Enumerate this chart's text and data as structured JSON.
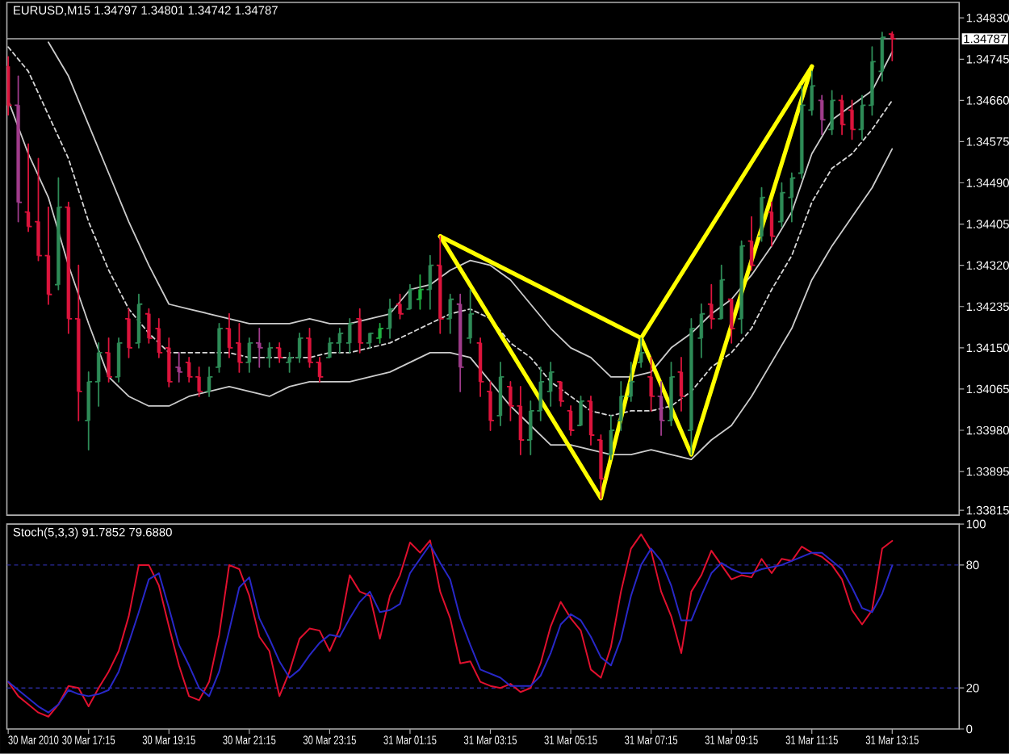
{
  "chart_data": [
    {
      "type": "candlestick",
      "title": "EURUSD,M15 1.34797 1.34801 1.34742 1.34787",
      "x": [
        "2010-03-30T15:15",
        "2010-03-30T15:30",
        "2010-03-30T15:45",
        "2010-03-30T16:00",
        "2010-03-30T16:15",
        "2010-03-30T16:30",
        "2010-03-30T16:45",
        "2010-03-30T17:00",
        "2010-03-30T17:15",
        "2010-03-30T17:30",
        "2010-03-30T17:45",
        "2010-03-30T18:00",
        "2010-03-30T18:15",
        "2010-03-30T18:30",
        "2010-03-30T18:45",
        "2010-03-30T19:00",
        "2010-03-30T19:15",
        "2010-03-30T19:30",
        "2010-03-30T19:45",
        "2010-03-30T20:00",
        "2010-03-30T20:15",
        "2010-03-30T20:30",
        "2010-03-30T20:45",
        "2010-03-30T21:00",
        "2010-03-30T21:15",
        "2010-03-30T21:30",
        "2010-03-30T21:45",
        "2010-03-30T22:00",
        "2010-03-30T22:15",
        "2010-03-30T22:30",
        "2010-03-30T22:45",
        "2010-03-30T23:00",
        "2010-03-30T23:15",
        "2010-03-30T23:30",
        "2010-03-30T23:45",
        "2010-03-31T00:00",
        "2010-03-31T00:15",
        "2010-03-31T00:30",
        "2010-03-31T00:45",
        "2010-03-31T01:00",
        "2010-03-31T01:15",
        "2010-03-31T01:30",
        "2010-03-31T01:45",
        "2010-03-31T02:00",
        "2010-03-31T02:15",
        "2010-03-31T02:30",
        "2010-03-31T02:45",
        "2010-03-31T03:00",
        "2010-03-31T03:15",
        "2010-03-31T03:30",
        "2010-03-31T03:45",
        "2010-03-31T04:00",
        "2010-03-31T04:15",
        "2010-03-31T04:30",
        "2010-03-31T04:45",
        "2010-03-31T05:00",
        "2010-03-31T05:15",
        "2010-03-31T05:30",
        "2010-03-31T05:45",
        "2010-03-31T06:00",
        "2010-03-31T06:15",
        "2010-03-31T06:30",
        "2010-03-31T06:45",
        "2010-03-31T07:00",
        "2010-03-31T07:15",
        "2010-03-31T07:30",
        "2010-03-31T07:45",
        "2010-03-31T08:00",
        "2010-03-31T08:15",
        "2010-03-31T08:30",
        "2010-03-31T08:45",
        "2010-03-31T09:00",
        "2010-03-31T09:15",
        "2010-03-31T09:30",
        "2010-03-31T09:45",
        "2010-03-31T10:00",
        "2010-03-31T10:15",
        "2010-03-31T10:30",
        "2010-03-31T10:45",
        "2010-03-31T11:00",
        "2010-03-31T11:15",
        "2010-03-31T11:30",
        "2010-03-31T11:45",
        "2010-03-31T12:00",
        "2010-03-31T12:15",
        "2010-03-31T12:30",
        "2010-03-31T12:45",
        "2010-03-31T13:00",
        "2010-03-31T13:15"
      ],
      "ohlc": [
        [
          1.3473,
          1.3475,
          1.3463,
          1.3465
        ],
        [
          1.3465,
          1.3471,
          1.3441,
          1.3445
        ],
        [
          1.3443,
          1.3457,
          1.3439,
          1.344
        ],
        [
          1.3441,
          1.3454,
          1.3433,
          1.3434
        ],
        [
          1.3434,
          1.3444,
          1.3424,
          1.3426
        ],
        [
          1.3428,
          1.345,
          1.3427,
          1.3444
        ],
        [
          1.3444,
          1.3445,
          1.3418,
          1.3421
        ],
        [
          1.3421,
          1.3432,
          1.34,
          1.3406
        ],
        [
          1.34,
          1.341,
          1.3394,
          1.3408
        ],
        [
          1.3408,
          1.3416,
          1.3403,
          1.3414
        ],
        [
          1.3414,
          1.3417,
          1.3408,
          1.3409
        ],
        [
          1.3409,
          1.3417,
          1.3408,
          1.3416
        ],
        [
          1.3421,
          1.3423,
          1.3413,
          1.3415
        ],
        [
          1.3416,
          1.3426,
          1.3415,
          1.3424
        ],
        [
          1.3422,
          1.3423,
          1.3416,
          1.3417
        ],
        [
          1.3419,
          1.3421,
          1.3413,
          1.3414
        ],
        [
          1.3415,
          1.3417,
          1.3407,
          1.3408
        ],
        [
          1.3411,
          1.3414,
          1.3408,
          1.341
        ],
        [
          1.3412,
          1.3413,
          1.3408,
          1.3409
        ],
        [
          1.3409,
          1.3411,
          1.3405,
          1.3406
        ],
        [
          1.3406,
          1.3411,
          1.3405,
          1.3409
        ],
        [
          1.3411,
          1.342,
          1.341,
          1.3419
        ],
        [
          1.3419,
          1.3422,
          1.3413,
          1.3415
        ],
        [
          1.3416,
          1.342,
          1.341,
          1.3412
        ],
        [
          1.3412,
          1.3417,
          1.341,
          1.3416
        ],
        [
          1.3416,
          1.3419,
          1.3411,
          1.3415
        ],
        [
          1.3413,
          1.3416,
          1.3411,
          1.3415
        ],
        [
          1.3415,
          1.3416,
          1.3412,
          1.3413
        ],
        [
          1.3412,
          1.3414,
          1.341,
          1.3413
        ],
        [
          1.3413,
          1.3418,
          1.3412,
          1.3417
        ],
        [
          1.3417,
          1.3419,
          1.3411,
          1.3412
        ],
        [
          1.3412,
          1.3413,
          1.3408,
          1.3409
        ],
        [
          1.3413,
          1.3417,
          1.3413,
          1.3416
        ],
        [
          1.3416,
          1.3419,
          1.3414,
          1.3418
        ],
        [
          1.3416,
          1.3421,
          1.3414,
          1.342
        ],
        [
          1.3421,
          1.3423,
          1.3414,
          1.3416
        ],
        [
          1.3416,
          1.3418,
          1.3415,
          1.3418
        ],
        [
          1.3417,
          1.342,
          1.3416,
          1.3419
        ],
        [
          1.3419,
          1.3425,
          1.3417,
          1.3423
        ],
        [
          1.3424,
          1.3426,
          1.3421,
          1.3422
        ],
        [
          1.3423,
          1.3428,
          1.3423,
          1.3427
        ],
        [
          1.3425,
          1.343,
          1.3423,
          1.3427
        ],
        [
          1.3427,
          1.3434,
          1.3423,
          1.3432
        ],
        [
          1.3432,
          1.3438,
          1.3418,
          1.3421
        ],
        [
          1.3421,
          1.3426,
          1.3418,
          1.3425
        ],
        [
          1.3424,
          1.3426,
          1.3406,
          1.3411
        ],
        [
          1.3417,
          1.3427,
          1.3416,
          1.3422
        ],
        [
          1.3416,
          1.3417,
          1.3405,
          1.3408
        ],
        [
          1.3406,
          1.3408,
          1.3398,
          1.34
        ],
        [
          1.3401,
          1.3412,
          1.3399,
          1.3409
        ],
        [
          1.3407,
          1.3408,
          1.34,
          1.3403
        ],
        [
          1.3403,
          1.3407,
          1.3393,
          1.3396
        ],
        [
          1.3396,
          1.3404,
          1.3393,
          1.3402
        ],
        [
          1.3402,
          1.3411,
          1.34,
          1.3408
        ],
        [
          1.3406,
          1.3412,
          1.3403,
          1.341
        ],
        [
          1.3408,
          1.3408,
          1.3403,
          1.3404
        ],
        [
          1.3402,
          1.3403,
          1.3397,
          1.3398
        ],
        [
          1.3399,
          1.3405,
          1.3399,
          1.3404
        ],
        [
          1.3404,
          1.3405,
          1.3395,
          1.3397
        ],
        [
          1.3396,
          1.3397,
          1.3384,
          1.3388
        ],
        [
          1.3393,
          1.3401,
          1.3392,
          1.3398
        ],
        [
          1.34,
          1.3408,
          1.3398,
          1.3405
        ],
        [
          1.3405,
          1.3412,
          1.3404,
          1.3408
        ],
        [
          1.3412,
          1.3417,
          1.3411,
          1.3414
        ],
        [
          1.3409,
          1.3413,
          1.3402,
          1.3405
        ],
        [
          1.3405,
          1.3408,
          1.3397,
          1.34
        ],
        [
          1.34,
          1.3412,
          1.3399,
          1.3409
        ],
        [
          1.341,
          1.3413,
          1.3402,
          1.3405
        ],
        [
          1.3398,
          1.3421,
          1.3393,
          1.3419
        ],
        [
          1.3417,
          1.3424,
          1.3413,
          1.3422
        ],
        [
          1.3424,
          1.3428,
          1.3419,
          1.3421
        ],
        [
          1.3421,
          1.3432,
          1.3421,
          1.3429
        ],
        [
          1.3425,
          1.3425,
          1.3416,
          1.3419
        ],
        [
          1.3421,
          1.3437,
          1.3418,
          1.3436
        ],
        [
          1.3437,
          1.3442,
          1.3431,
          1.3432
        ],
        [
          1.3438,
          1.3448,
          1.3437,
          1.3446
        ],
        [
          1.3443,
          1.3445,
          1.3436,
          1.3438
        ],
        [
          1.3441,
          1.3449,
          1.344,
          1.3447
        ],
        [
          1.3446,
          1.3451,
          1.3441,
          1.345
        ],
        [
          1.3451,
          1.3469,
          1.345,
          1.3465
        ],
        [
          1.3464,
          1.3472,
          1.3463,
          1.3469
        ],
        [
          1.3466,
          1.3467,
          1.3459,
          1.3462
        ],
        [
          1.346,
          1.3468,
          1.3459,
          1.3466
        ],
        [
          1.3466,
          1.3467,
          1.3459,
          1.3461
        ],
        [
          1.3464,
          1.3466,
          1.3458,
          1.346
        ],
        [
          1.346,
          1.3467,
          1.3458,
          1.3465
        ],
        [
          1.3465,
          1.3477,
          1.3463,
          1.3474
        ],
        [
          1.3472,
          1.348,
          1.347,
          1.3479
        ],
        [
          1.34797,
          1.34801,
          1.34742,
          1.34787
        ]
      ],
      "colors": [
        "#dc143c",
        "#a03c8c",
        "#dc143c",
        "#dc143c",
        "#dc143c",
        "#2e8b57",
        "#dc143c",
        "#dc143c",
        "#2e8b57",
        "#2e8b57",
        "#dc143c",
        "#2e8b57",
        "#dc143c",
        "#2e8b57",
        "#dc143c",
        "#dc143c",
        "#dc143c",
        "#a03c8c",
        "#dc143c",
        "#dc143c",
        "#2e8b57",
        "#2e8b57",
        "#dc143c",
        "#dc143c",
        "#2e8b57",
        "#a03c8c",
        "#2e8b57",
        "#dc143c",
        "#2e8b57",
        "#2e8b57",
        "#dc143c",
        "#dc143c",
        "#2e8b57",
        "#2e8b57",
        "#2e8b57",
        "#dc143c",
        "#2e8b57",
        "#20b040",
        "#2e8b57",
        "#dc143c",
        "#2e8b57",
        "#20b040",
        "#2e8b57",
        "#dc143c",
        "#2e8b57",
        "#a03c8c",
        "#2e8b57",
        "#dc143c",
        "#dc143c",
        "#2e8b57",
        "#dc143c",
        "#dc143c",
        "#2e8b57",
        "#2e8b57",
        "#2e8b57",
        "#dc143c",
        "#dc143c",
        "#2e8b57",
        "#dc143c",
        "#dc143c",
        "#2e8b57",
        "#2e8b57",
        "#2e8b57",
        "#2e8b57",
        "#dc143c",
        "#a03c8c",
        "#2e8b57",
        "#dc143c",
        "#2e8b57",
        "#2e8b57",
        "#dc143c",
        "#2e8b57",
        "#dc143c",
        "#2e8b57",
        "#dc143c",
        "#2e8b57",
        "#dc143c",
        "#2e8b57",
        "#2e8b57",
        "#2e8b57",
        "#2e8b57",
        "#a03c8c",
        "#2e8b57",
        "#dc143c",
        "#dc143c",
        "#2e8b57",
        "#2e8b57",
        "#2e8b57",
        "#dc143c"
      ],
      "series": [
        {
          "type": "line",
          "color": "#cccccc",
          "x": [
            "2010-03-30T16:15",
            "2010-03-30T16:45",
            "2010-03-30T17:15",
            "2010-03-30T17:45",
            "2010-03-30T18:15",
            "2010-03-30T18:45",
            "2010-03-30T19:15",
            "2010-03-30T19:45",
            "2010-03-30T20:15",
            "2010-03-30T20:45",
            "2010-03-30T21:15",
            "2010-03-30T21:45",
            "2010-03-30T22:15",
            "2010-03-30T22:45",
            "2010-03-30T23:15",
            "2010-03-30T23:45",
            "2010-03-31T00:15",
            "2010-03-31T00:45",
            "2010-03-31T01:15",
            "2010-03-31T01:45",
            "2010-03-31T02:15",
            "2010-03-31T02:45",
            "2010-03-31T03:15",
            "2010-03-31T03:45",
            "2010-03-31T04:15",
            "2010-03-31T04:45",
            "2010-03-31T05:15",
            "2010-03-31T05:45",
            "2010-03-31T06:15",
            "2010-03-31T06:45",
            "2010-03-31T07:15",
            "2010-03-31T07:45",
            "2010-03-31T08:15",
            "2010-03-31T08:45",
            "2010-03-31T09:15",
            "2010-03-31T09:45",
            "2010-03-31T10:15",
            "2010-03-31T10:45",
            "2010-03-31T11:15",
            "2010-03-31T11:45",
            "2010-03-31T12:15",
            "2010-03-31T12:45",
            "2010-03-31T13:15"
          ],
          "values": [
            1.3478,
            1.3471,
            1.3461,
            1.3451,
            1.3441,
            1.3432,
            1.3424,
            1.3423,
            1.3422,
            1.3421,
            1.342,
            1.342,
            1.342,
            1.3421,
            1.342,
            1.342,
            1.3421,
            1.3422,
            1.3427,
            1.3428,
            1.3431,
            1.3433,
            1.3432,
            1.3429,
            1.3424,
            1.3419,
            1.3415,
            1.3413,
            1.3409,
            1.3409,
            1.341,
            1.3415,
            1.3418,
            1.3422,
            1.3425,
            1.343,
            1.3436,
            1.3443,
            1.3455,
            1.3462,
            1.3465,
            1.3468,
            1.3476
          ]
        },
        {
          "type": "line",
          "color": "#d8d8d8",
          "line_style": "dashed",
          "x": [
            "2010-03-30T15:15",
            "2010-03-30T15:45",
            "2010-03-30T16:15",
            "2010-03-30T16:45",
            "2010-03-30T17:15",
            "2010-03-30T17:45",
            "2010-03-30T18:15",
            "2010-03-30T18:45",
            "2010-03-30T19:15",
            "2010-03-30T19:45",
            "2010-03-30T20:15",
            "2010-03-30T20:45",
            "2010-03-30T21:15",
            "2010-03-30T21:45",
            "2010-03-30T22:15",
            "2010-03-30T22:45",
            "2010-03-30T23:15",
            "2010-03-30T23:45",
            "2010-03-31T00:15",
            "2010-03-31T00:45",
            "2010-03-31T01:15",
            "2010-03-31T01:45",
            "2010-03-31T02:15",
            "2010-03-31T02:45",
            "2010-03-31T03:15",
            "2010-03-31T03:45",
            "2010-03-31T04:15",
            "2010-03-31T04:45",
            "2010-03-31T05:15",
            "2010-03-31T05:45",
            "2010-03-31T06:15",
            "2010-03-31T06:45",
            "2010-03-31T07:15",
            "2010-03-31T07:45",
            "2010-03-31T08:15",
            "2010-03-31T08:45",
            "2010-03-31T09:15",
            "2010-03-31T09:45",
            "2010-03-31T10:15",
            "2010-03-31T10:45",
            "2010-03-31T11:15",
            "2010-03-31T11:45",
            "2010-03-31T12:15",
            "2010-03-31T12:45",
            "2010-03-31T13:15"
          ],
          "values": [
            1.3477,
            1.3472,
            1.3463,
            1.3454,
            1.3441,
            1.3431,
            1.3423,
            1.3418,
            1.3414,
            1.3414,
            1.3414,
            1.3414,
            1.3413,
            1.3413,
            1.3413,
            1.3413,
            1.3414,
            1.3414,
            1.3415,
            1.3416,
            1.3418,
            1.342,
            1.3422,
            1.3423,
            1.3421,
            1.3416,
            1.3413,
            1.3408,
            1.3405,
            1.3402,
            1.3401,
            1.3402,
            1.3402,
            1.3403,
            1.3406,
            1.3411,
            1.3414,
            1.3419,
            1.3427,
            1.3434,
            1.3445,
            1.3452,
            1.3455,
            1.346,
            1.3466
          ]
        },
        {
          "type": "line",
          "color": "#cccccc",
          "x": [
            "2010-03-30T15:15",
            "2010-03-30T15:45",
            "2010-03-30T16:15",
            "2010-03-30T16:45",
            "2010-03-30T17:15",
            "2010-03-30T17:45",
            "2010-03-30T18:15",
            "2010-03-30T18:45",
            "2010-03-30T19:15",
            "2010-03-30T19:45",
            "2010-03-30T20:15",
            "2010-03-30T20:45",
            "2010-03-30T21:15",
            "2010-03-30T21:45",
            "2010-03-30T22:15",
            "2010-03-30T22:45",
            "2010-03-30T23:15",
            "2010-03-30T23:45",
            "2010-03-31T00:15",
            "2010-03-31T00:45",
            "2010-03-31T01:15",
            "2010-03-31T01:45",
            "2010-03-31T02:15",
            "2010-03-31T02:45",
            "2010-03-31T03:15",
            "2010-03-31T03:45",
            "2010-03-31T04:15",
            "2010-03-31T04:45",
            "2010-03-31T05:15",
            "2010-03-31T05:45",
            "2010-03-31T06:15",
            "2010-03-31T06:45",
            "2010-03-31T07:15",
            "2010-03-31T07:45",
            "2010-03-31T08:15",
            "2010-03-31T08:45",
            "2010-03-31T09:15",
            "2010-03-31T09:45",
            "2010-03-31T10:15",
            "2010-03-31T10:45",
            "2010-03-31T11:15",
            "2010-03-31T11:45",
            "2010-03-31T12:15",
            "2010-03-31T12:45",
            "2010-03-31T13:15"
          ],
          "values": [
            1.3466,
            1.3455,
            1.3446,
            1.3432,
            1.342,
            1.3409,
            1.3405,
            1.3403,
            1.3403,
            1.3405,
            1.3406,
            1.3407,
            1.3406,
            1.3405,
            1.3407,
            1.3408,
            1.3408,
            1.3408,
            1.3409,
            1.341,
            1.3412,
            1.3414,
            1.3414,
            1.3413,
            1.3408,
            1.3403,
            1.3399,
            1.3395,
            1.3395,
            1.3394,
            1.3393,
            1.3393,
            1.3394,
            1.3393,
            1.3392,
            1.3396,
            1.3399,
            1.3405,
            1.3412,
            1.3419,
            1.3429,
            1.3436,
            1.3442,
            1.3448,
            1.3456
          ]
        },
        {
          "type": "line",
          "color": "#ffff00",
          "x": [
            "2010-03-31T02:00",
            "2010-03-31T06:00",
            "2010-03-31T07:00",
            "2010-03-31T08:15",
            "2010-03-31T11:15"
          ],
          "values": [
            1.3438,
            1.3384,
            1.3417,
            1.3393,
            1.3473
          ]
        },
        {
          "type": "line",
          "color": "#ffff00",
          "x": [
            "2010-03-31T02:00",
            "2010-03-31T07:00",
            "2010-03-31T11:15"
          ],
          "values": [
            1.3438,
            1.3417,
            1.3473
          ]
        }
      ],
      "xlim": [
        "2010-03-30T15:13",
        "2010-03-31T14:55"
      ],
      "ylim": [
        1.33805,
        1.34862
      ],
      "yticks": [
        {
          "value": 1.3483,
          "label": "1.34830"
        },
        1.34745,
        {
          "value": 1.3466,
          "label": "1.34660"
        },
        1.34575,
        {
          "value": 1.3449,
          "label": "1.34490"
        },
        1.34405,
        {
          "value": 1.3432,
          "label": "1.34320"
        },
        1.34235,
        {
          "value": 1.3415,
          "label": "1.34150"
        },
        1.34065,
        {
          "value": 1.3398,
          "label": "1.33980"
        },
        1.33895,
        1.33815
      ],
      "ref_lines": [
        {
          "axis": "y",
          "value": 1.34787,
          "label": "1.34787",
          "color": "#b0b0b0"
        }
      ],
      "tick_labels": "y"
    },
    {
      "type": "line",
      "title": "Stoch(5,3,3) 91.7852 79.6880",
      "x": [
        "2010-03-30T15:15",
        "2010-03-30T15:30",
        "2010-03-30T15:45",
        "2010-03-30T16:00",
        "2010-03-30T16:15",
        "2010-03-30T16:30",
        "2010-03-30T16:45",
        "2010-03-30T17:00",
        "2010-03-30T17:15",
        "2010-03-30T17:30",
        "2010-03-30T17:45",
        "2010-03-30T18:00",
        "2010-03-30T18:15",
        "2010-03-30T18:30",
        "2010-03-30T18:45",
        "2010-03-30T19:00",
        "2010-03-30T19:15",
        "2010-03-30T19:30",
        "2010-03-30T19:45",
        "2010-03-30T20:00",
        "2010-03-30T20:15",
        "2010-03-30T20:30",
        "2010-03-30T20:45",
        "2010-03-30T21:00",
        "2010-03-30T21:15",
        "2010-03-30T21:30",
        "2010-03-30T21:45",
        "2010-03-30T22:00",
        "2010-03-30T22:15",
        "2010-03-30T22:30",
        "2010-03-30T22:45",
        "2010-03-30T23:00",
        "2010-03-30T23:15",
        "2010-03-30T23:30",
        "2010-03-30T23:45",
        "2010-03-31T00:00",
        "2010-03-31T00:15",
        "2010-03-31T00:30",
        "2010-03-31T00:45",
        "2010-03-31T01:00",
        "2010-03-31T01:15",
        "2010-03-31T01:30",
        "2010-03-31T01:45",
        "2010-03-31T02:00",
        "2010-03-31T02:15",
        "2010-03-31T02:30",
        "2010-03-31T02:45",
        "2010-03-31T03:00",
        "2010-03-31T03:15",
        "2010-03-31T03:30",
        "2010-03-31T03:45",
        "2010-03-31T04:00",
        "2010-03-31T04:15",
        "2010-03-31T04:30",
        "2010-03-31T04:45",
        "2010-03-31T05:00",
        "2010-03-31T05:15",
        "2010-03-31T05:30",
        "2010-03-31T05:45",
        "2010-03-31T06:00",
        "2010-03-31T06:15",
        "2010-03-31T06:30",
        "2010-03-31T06:45",
        "2010-03-31T07:00",
        "2010-03-31T07:15",
        "2010-03-31T07:30",
        "2010-03-31T07:45",
        "2010-03-31T08:00",
        "2010-03-31T08:15",
        "2010-03-31T08:30",
        "2010-03-31T08:45",
        "2010-03-31T09:00",
        "2010-03-31T09:15",
        "2010-03-31T09:30",
        "2010-03-31T09:45",
        "2010-03-31T10:00",
        "2010-03-31T10:15",
        "2010-03-31T10:30",
        "2010-03-31T10:45",
        "2010-03-31T11:00",
        "2010-03-31T11:15",
        "2010-03-31T11:30",
        "2010-03-31T11:45",
        "2010-03-31T12:00",
        "2010-03-31T12:15",
        "2010-03-31T12:30",
        "2010-03-31T12:45",
        "2010-03-31T13:00",
        "2010-03-31T13:15"
      ],
      "series": [
        {
          "color": "#e0102e",
          "values": [
            23,
            16,
            12,
            8,
            6,
            12,
            21,
            20,
            11,
            20,
            28,
            38,
            55,
            80,
            80,
            70,
            50,
            31,
            16,
            14,
            23,
            46,
            80,
            78,
            65,
            45,
            38,
            16,
            28,
            44,
            49,
            48,
            38,
            49,
            75,
            67,
            65,
            44,
            65,
            75,
            91,
            86,
            92,
            67,
            54,
            32,
            33,
            23,
            21,
            20,
            22,
            18,
            20,
            32,
            50,
            62,
            54,
            48,
            29,
            25,
            40,
            67,
            88,
            95,
            87,
            67,
            55,
            37,
            67,
            75,
            87,
            80,
            73,
            75,
            74,
            83,
            76,
            83,
            82,
            89,
            86,
            84,
            80,
            73,
            58,
            51,
            58,
            88,
            91.7852
          ]
        },
        {
          "color": "#2828c8",
          "values": [
            23,
            19,
            15,
            11,
            8,
            12,
            19,
            17,
            16,
            17,
            19,
            28,
            42,
            57,
            73,
            76,
            59,
            41,
            31,
            20,
            16,
            28,
            48,
            69,
            74,
            54,
            44,
            33,
            25,
            29,
            36,
            42,
            46,
            45,
            54,
            62,
            67,
            57,
            58,
            61,
            76,
            83,
            90,
            81,
            73,
            54,
            41,
            29,
            27,
            25,
            21,
            21,
            21,
            26,
            37,
            51,
            56,
            53,
            45,
            35,
            31,
            44,
            65,
            80,
            88,
            82,
            70,
            53,
            53,
            65,
            76,
            81,
            78,
            76,
            76,
            78,
            79,
            80,
            82,
            84,
            86,
            86,
            82,
            78,
            69,
            59,
            57,
            66,
            79.688
          ]
        }
      ],
      "xlim": [
        "2010-03-30T15:13",
        "2010-03-31T14:55"
      ],
      "xticks": [
        {
          "value": "2010-03-30T15:15",
          "label": "30 Mar 2010"
        },
        {
          "value": "2010-03-30T17:15",
          "label": "30 Mar 17:15"
        },
        {
          "value": "2010-03-30T19:15",
          "label": "30 Mar 19:15"
        },
        {
          "value": "2010-03-30T21:15",
          "label": "30 Mar 21:15"
        },
        {
          "value": "2010-03-30T23:15",
          "label": "30 Mar 23:15"
        },
        {
          "value": "2010-03-31T01:15",
          "label": "31 Mar 01:15"
        },
        {
          "value": "2010-03-31T03:15",
          "label": "31 Mar 03:15"
        },
        {
          "value": "2010-03-31T05:15",
          "label": "31 Mar 05:15"
        },
        {
          "value": "2010-03-31T07:15",
          "label": "31 Mar 07:15"
        },
        {
          "value": "2010-03-31T09:15",
          "label": "31 Mar 09:15"
        },
        {
          "value": "2010-03-31T11:15",
          "label": "31 Mar 11:15"
        },
        {
          "value": "2010-03-31T13:15",
          "label": "31 Mar 13:15"
        }
      ],
      "ylim": [
        0,
        100
      ],
      "yticks": [
        0,
        20,
        80,
        100
      ],
      "ref_lines": [
        {
          "axis": "y",
          "value": 20,
          "color": "#2a2a9a",
          "line_style": "dashed"
        },
        {
          "axis": "y",
          "value": 80,
          "color": "#2a2a9a",
          "line_style": "dashed"
        }
      ]
    }
  ]
}
